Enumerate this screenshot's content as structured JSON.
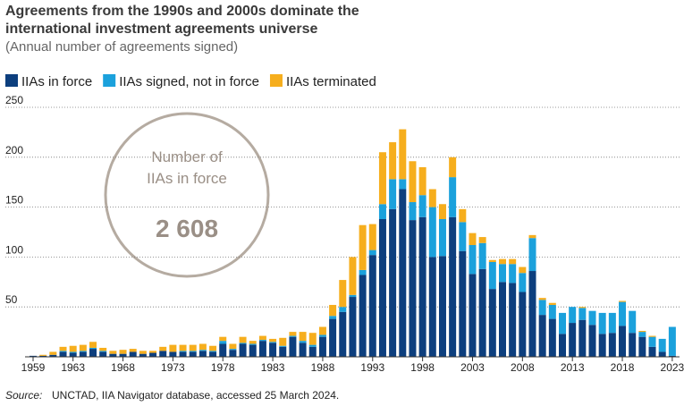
{
  "chart_data": {
    "type": "stacked_bar",
    "title": "Agreements from the 1990s and 2000s dominate the international investment agreements universe",
    "subtitle": "(Annual number of agreements signed)",
    "annotation": {
      "lines": [
        "Number of",
        "IIAs in force"
      ],
      "value": "2 608"
    },
    "source_label": "Source:",
    "source": "UNCTAD, IIA Navigator database, accessed 25 March 2024.",
    "categories": [
      "1959",
      null,
      null,
      null,
      "1963",
      null,
      null,
      null,
      null,
      "1968",
      null,
      null,
      null,
      null,
      "1973",
      null,
      null,
      null,
      null,
      "1978",
      null,
      null,
      null,
      null,
      "1983",
      null,
      null,
      null,
      null,
      "1988",
      null,
      null,
      null,
      null,
      "1993",
      null,
      null,
      null,
      null,
      "1998",
      null,
      null,
      null,
      null,
      "2003",
      null,
      null,
      null,
      null,
      "2008",
      null,
      null,
      null,
      null,
      "2013",
      null,
      null,
      null,
      null,
      "2018",
      null,
      null,
      null,
      null,
      "2023"
    ],
    "series": [
      {
        "name": "IIAs in force",
        "color": "#0d3f7e",
        "values": [
          1,
          1,
          2,
          5,
          4,
          5,
          8,
          5,
          3,
          3,
          5,
          3,
          4,
          6,
          5,
          5,
          5,
          6,
          5,
          13,
          7,
          13,
          12,
          16,
          14,
          10,
          20,
          14,
          10,
          20,
          38,
          45,
          60,
          82,
          102,
          138,
          148,
          168,
          137,
          140,
          100,
          101,
          140,
          106,
          83,
          88,
          68,
          75,
          74,
          65,
          86,
          42,
          38,
          23,
          34,
          37,
          32,
          23,
          24,
          31,
          24,
          20,
          10,
          5,
          1
        ]
      },
      {
        "name": "IIAs signed, not in force",
        "color": "#1ba1dc",
        "values": [
          0,
          0,
          0,
          1,
          1,
          1,
          1,
          1,
          0,
          0,
          0,
          0,
          0,
          0,
          0,
          1,
          1,
          1,
          1,
          3,
          1,
          1,
          1,
          1,
          1,
          1,
          1,
          2,
          2,
          2,
          3,
          5,
          2,
          5,
          5,
          15,
          30,
          10,
          18,
          22,
          50,
          37,
          40,
          29,
          29,
          26,
          27,
          18,
          19,
          19,
          33,
          15,
          14,
          21,
          16,
          12,
          14,
          21,
          20,
          24,
          22,
          5,
          10,
          13,
          29
        ]
      },
      {
        "name": "IIAs terminated",
        "color": "#f6ae1d",
        "values": [
          0,
          1,
          3,
          4,
          6,
          6,
          6,
          3,
          3,
          4,
          3,
          3,
          2,
          4,
          7,
          6,
          6,
          6,
          5,
          4,
          5,
          6,
          3,
          4,
          3,
          8,
          4,
          9,
          12,
          8,
          11,
          27,
          38,
          45,
          26,
          52,
          37,
          50,
          41,
          28,
          18,
          15,
          20,
          13,
          12,
          6,
          2,
          5,
          5,
          6,
          3,
          2,
          2,
          0,
          0,
          1,
          0,
          0,
          0,
          1,
          0,
          1,
          1,
          0,
          0
        ]
      }
    ],
    "ylim": [
      0,
      250
    ],
    "yticks": [
      50,
      100,
      150,
      200,
      250
    ],
    "grid": true,
    "legend": "top-left"
  }
}
